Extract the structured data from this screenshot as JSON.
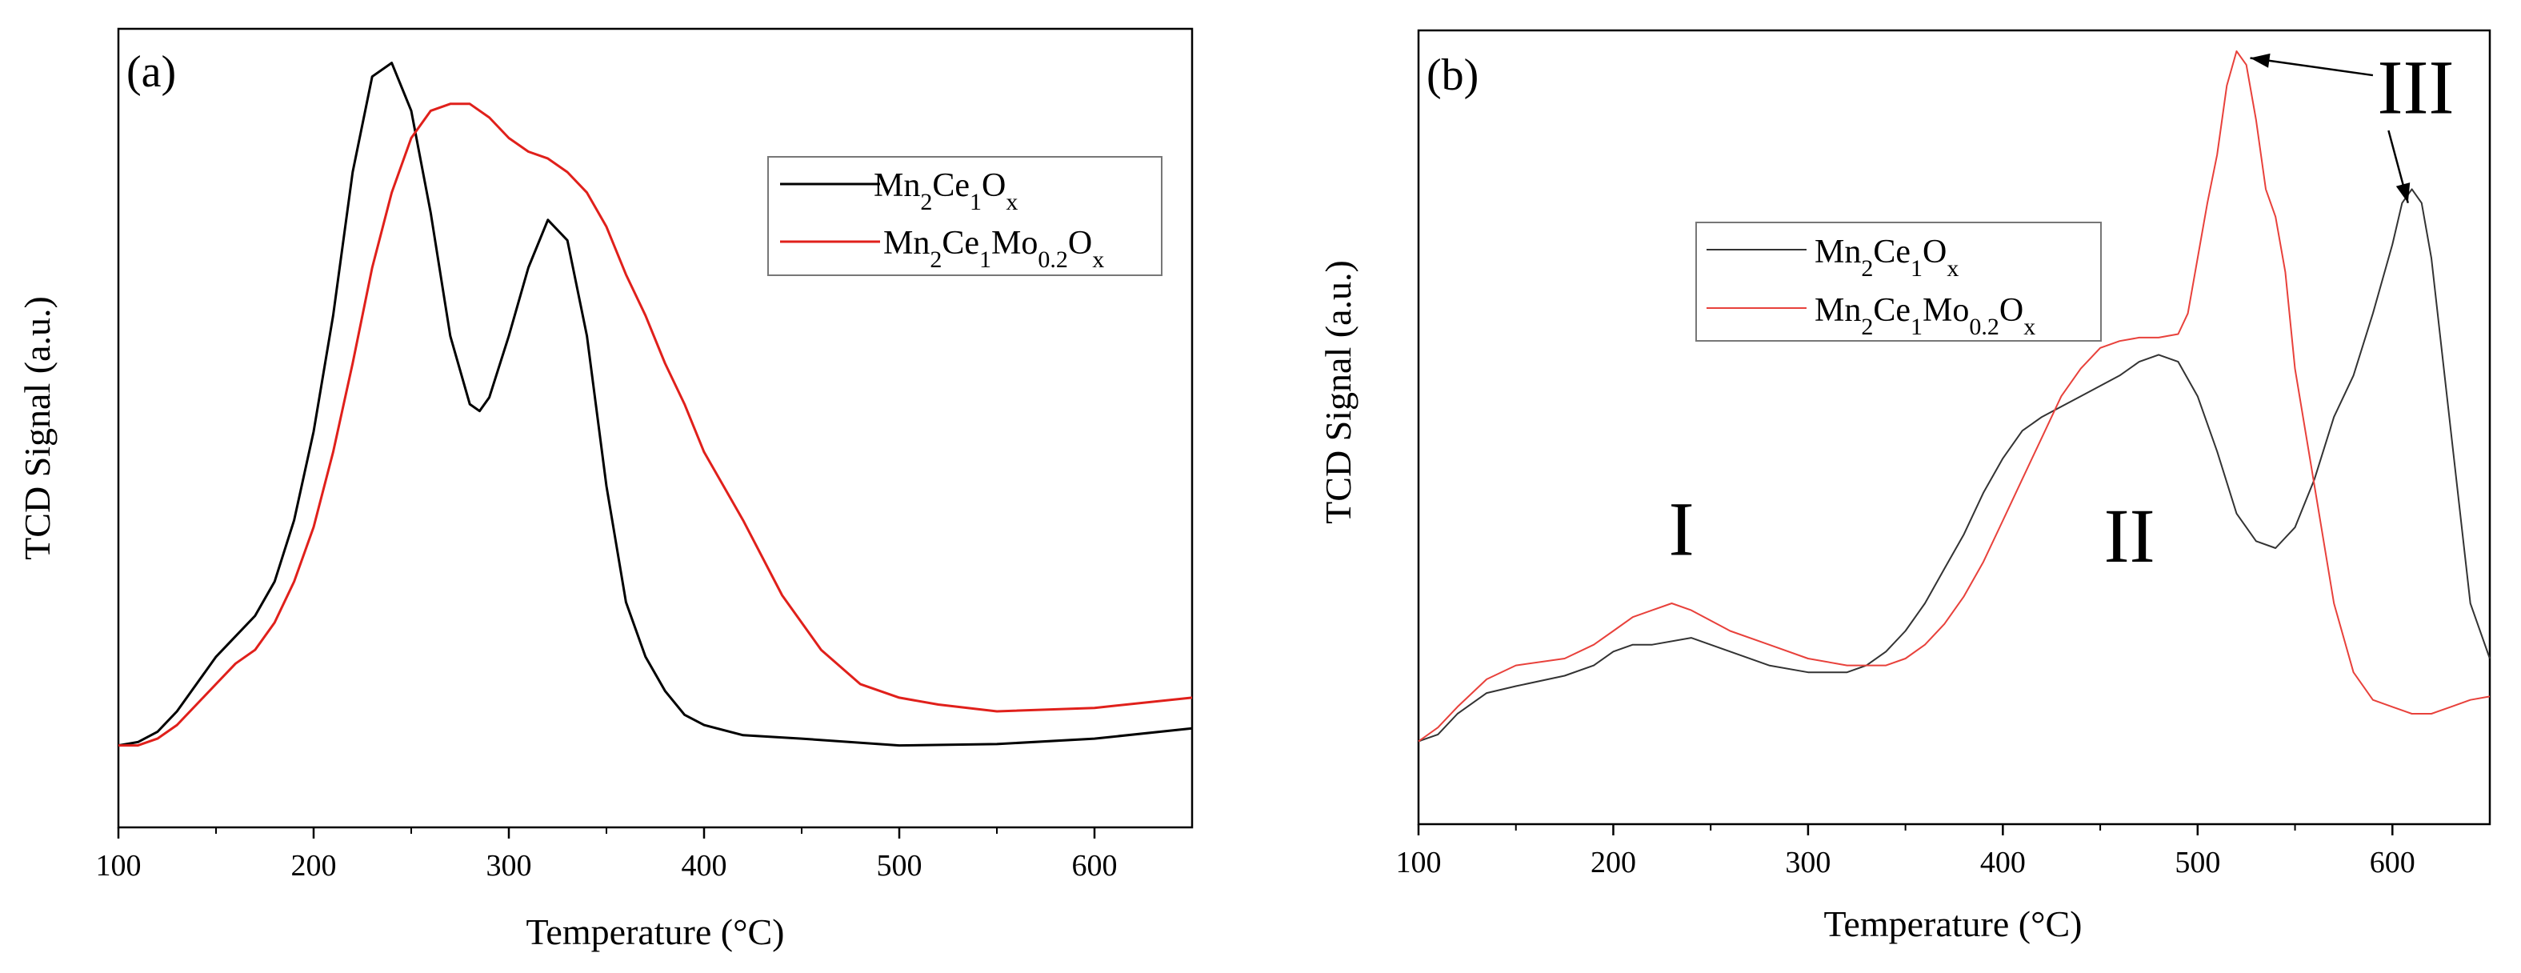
{
  "chart_data": [
    {
      "panel_label": "(a)",
      "type": "line",
      "xlabel": "Temperature (°C)",
      "ylabel": "TCD Signal (a.u.)",
      "xlim": [
        100,
        650
      ],
      "ylim": [
        -0.12,
        1.05
      ],
      "xticks": [
        100,
        200,
        300,
        400,
        500,
        600
      ],
      "grid": false,
      "legend": {
        "placement": "top-right"
      },
      "series": [
        {
          "name": "Mn2Ce1Ox",
          "label_parts": [
            [
              "Mn",
              ""
            ],
            [
              "2",
              "sub"
            ],
            [
              "Ce",
              ""
            ],
            [
              "1",
              "sub"
            ],
            [
              "O",
              ""
            ],
            [
              "x",
              "sub"
            ]
          ],
          "color": "#000000",
          "x": [
            100,
            110,
            120,
            130,
            140,
            150,
            160,
            170,
            180,
            190,
            200,
            210,
            220,
            230,
            240,
            250,
            260,
            270,
            280,
            285,
            290,
            300,
            310,
            320,
            330,
            340,
            350,
            360,
            370,
            380,
            390,
            400,
            420,
            450,
            500,
            550,
            600,
            650
          ],
          "y": [
            0.0,
            0.005,
            0.02,
            0.05,
            0.09,
            0.13,
            0.16,
            0.19,
            0.24,
            0.33,
            0.46,
            0.63,
            0.84,
            0.98,
            1.0,
            0.93,
            0.78,
            0.6,
            0.5,
            0.49,
            0.51,
            0.6,
            0.7,
            0.77,
            0.74,
            0.6,
            0.38,
            0.21,
            0.13,
            0.08,
            0.045,
            0.03,
            0.015,
            0.01,
            0.0,
            0.002,
            0.01,
            0.025
          ]
        },
        {
          "name": "Mn2Ce1Mo0.2Ox",
          "label_parts": [
            [
              "Mn",
              ""
            ],
            [
              "2",
              "sub"
            ],
            [
              "Ce",
              ""
            ],
            [
              "1",
              "sub"
            ],
            [
              "Mo",
              ""
            ],
            [
              "0.2",
              "sub"
            ],
            [
              "O",
              ""
            ],
            [
              "x",
              "sub"
            ]
          ],
          "color": "#e0201b",
          "x": [
            100,
            110,
            120,
            130,
            140,
            150,
            160,
            170,
            180,
            190,
            200,
            210,
            220,
            230,
            240,
            250,
            260,
            270,
            280,
            290,
            300,
            310,
            320,
            330,
            340,
            350,
            360,
            370,
            380,
            390,
            400,
            420,
            440,
            460,
            480,
            500,
            520,
            550,
            600,
            650
          ],
          "y": [
            0.0,
            0.0,
            0.01,
            0.03,
            0.06,
            0.09,
            0.12,
            0.14,
            0.18,
            0.24,
            0.32,
            0.43,
            0.56,
            0.7,
            0.81,
            0.89,
            0.93,
            0.94,
            0.94,
            0.92,
            0.89,
            0.87,
            0.86,
            0.84,
            0.81,
            0.76,
            0.69,
            0.63,
            0.56,
            0.5,
            0.43,
            0.33,
            0.22,
            0.14,
            0.09,
            0.07,
            0.06,
            0.05,
            0.055,
            0.07
          ]
        }
      ]
    },
    {
      "panel_label": "(b)",
      "type": "line",
      "xlabel": "Temperature (°C)",
      "ylabel": "TCD Signal (a.u.)",
      "xlim": [
        100,
        650
      ],
      "ylim": [
        -0.12,
        1.03
      ],
      "xticks": [
        100,
        200,
        300,
        400,
        500,
        600
      ],
      "grid": false,
      "legend": {
        "placement": "upper-left of center"
      },
      "annotations": [
        {
          "text": "I",
          "x": 235,
          "y": 0.27
        },
        {
          "text": "II",
          "x": 465,
          "y": 0.26
        },
        {
          "text": "III",
          "x": 612,
          "y": 0.91
        }
      ],
      "arrows": [
        {
          "from": [
            590,
            0.965
          ],
          "to": [
            527,
            0.99
          ]
        },
        {
          "from": [
            598,
            0.885
          ],
          "to": [
            608,
            0.78
          ]
        }
      ],
      "series": [
        {
          "name": "Mn2Ce1Ox",
          "label_parts": [
            [
              "Mn",
              ""
            ],
            [
              "2",
              "sub"
            ],
            [
              "Ce",
              ""
            ],
            [
              "1",
              "sub"
            ],
            [
              "O",
              ""
            ],
            [
              "x",
              "sub"
            ]
          ],
          "color": "#333333",
          "x": [
            100,
            110,
            120,
            135,
            150,
            175,
            190,
            200,
            210,
            220,
            240,
            260,
            280,
            300,
            310,
            320,
            330,
            340,
            350,
            360,
            370,
            380,
            390,
            400,
            410,
            420,
            440,
            460,
            470,
            480,
            490,
            500,
            510,
            520,
            530,
            540,
            550,
            560,
            570,
            580,
            590,
            600,
            605,
            610,
            615,
            620,
            630,
            640,
            650
          ],
          "y": [
            0.0,
            0.01,
            0.04,
            0.07,
            0.08,
            0.095,
            0.11,
            0.13,
            0.14,
            0.14,
            0.15,
            0.13,
            0.11,
            0.1,
            0.1,
            0.1,
            0.11,
            0.13,
            0.16,
            0.2,
            0.25,
            0.3,
            0.36,
            0.41,
            0.45,
            0.47,
            0.5,
            0.53,
            0.55,
            0.56,
            0.55,
            0.5,
            0.42,
            0.33,
            0.29,
            0.28,
            0.31,
            0.38,
            0.47,
            0.53,
            0.62,
            0.72,
            0.78,
            0.8,
            0.78,
            0.7,
            0.45,
            0.2,
            0.12
          ]
        },
        {
          "name": "Mn2Ce1Mo0.2Ox",
          "label_parts": [
            [
              "Mn",
              ""
            ],
            [
              "2",
              "sub"
            ],
            [
              "Ce",
              ""
            ],
            [
              "1",
              "sub"
            ],
            [
              "Mo",
              ""
            ],
            [
              "0.2",
              "sub"
            ],
            [
              "O",
              ""
            ],
            [
              "x",
              "sub"
            ]
          ],
          "color": "#e8413b",
          "x": [
            100,
            110,
            120,
            135,
            150,
            175,
            190,
            200,
            210,
            220,
            230,
            240,
            260,
            280,
            300,
            320,
            330,
            340,
            350,
            360,
            370,
            380,
            390,
            400,
            410,
            420,
            430,
            440,
            450,
            460,
            470,
            480,
            490,
            495,
            500,
            505,
            510,
            515,
            520,
            525,
            530,
            535,
            540,
            545,
            550,
            560,
            570,
            580,
            590,
            600,
            610,
            620,
            630,
            640,
            650
          ],
          "y": [
            0.0,
            0.02,
            0.05,
            0.09,
            0.11,
            0.12,
            0.14,
            0.16,
            0.18,
            0.19,
            0.2,
            0.19,
            0.16,
            0.14,
            0.12,
            0.11,
            0.11,
            0.11,
            0.12,
            0.14,
            0.17,
            0.21,
            0.26,
            0.32,
            0.38,
            0.44,
            0.5,
            0.54,
            0.57,
            0.58,
            0.585,
            0.585,
            0.59,
            0.62,
            0.7,
            0.78,
            0.85,
            0.95,
            1.0,
            0.98,
            0.9,
            0.8,
            0.76,
            0.68,
            0.54,
            0.37,
            0.2,
            0.1,
            0.06,
            0.05,
            0.04,
            0.04,
            0.05,
            0.06,
            0.065
          ]
        }
      ]
    }
  ]
}
